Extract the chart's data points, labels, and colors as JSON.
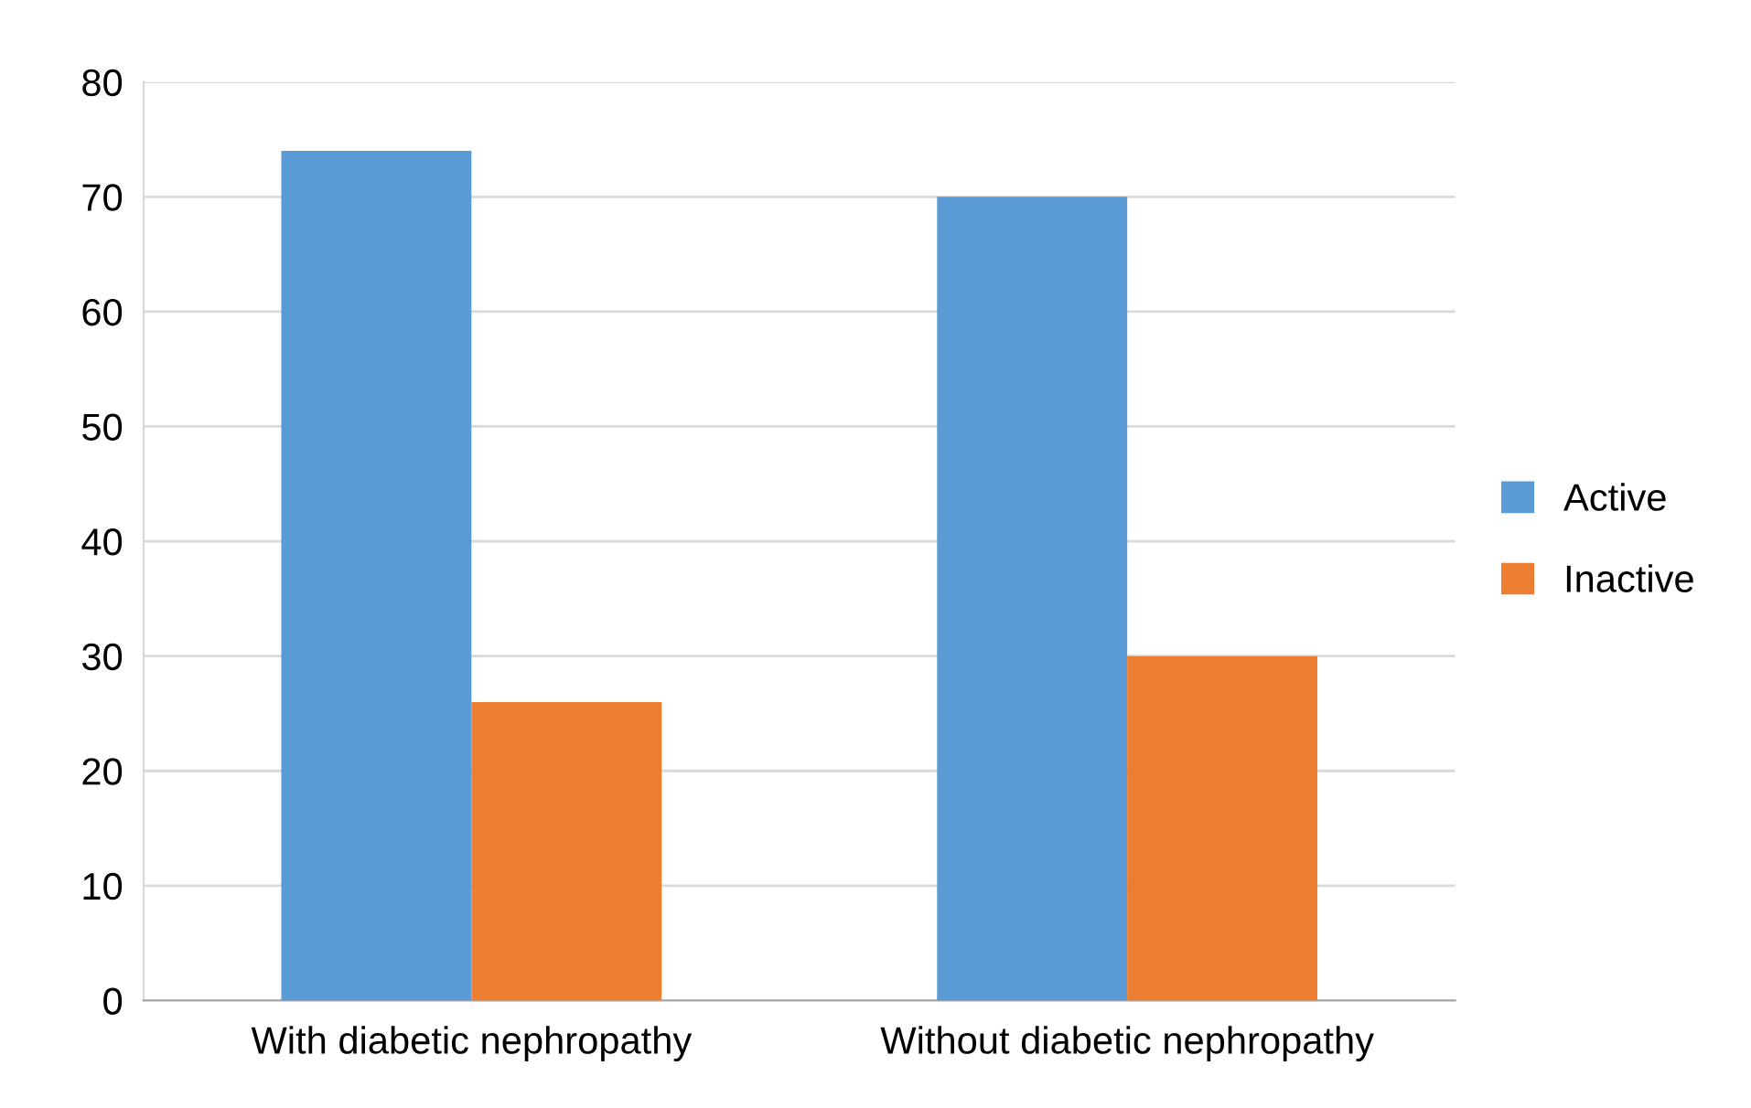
{
  "chart_data": {
    "type": "bar",
    "categories": [
      "With diabetic nephropathy",
      "Without diabetic nephropathy"
    ],
    "series": [
      {
        "name": "Active",
        "color": "#5b9bd5",
        "values": [
          74,
          70
        ]
      },
      {
        "name": "Inactive",
        "color": "#ed7d31",
        "values": [
          26,
          30
        ]
      }
    ],
    "ylim": [
      0,
      80
    ],
    "yticks": [
      0,
      10,
      20,
      30,
      40,
      50,
      60,
      70,
      80
    ],
    "grid": "y",
    "legend": "right"
  }
}
